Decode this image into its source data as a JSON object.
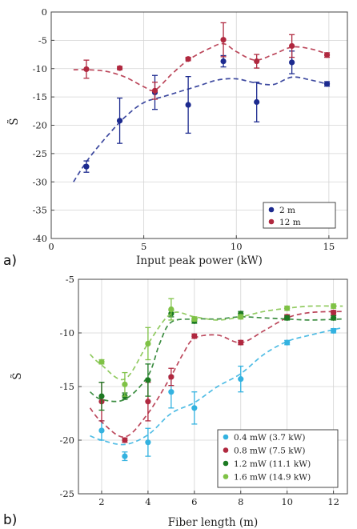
{
  "chart_data": [
    {
      "panel": "a)",
      "type": "scatter",
      "xlabel": "Input peak power (kW)",
      "ylabel": "S̃",
      "xlim": [
        0,
        16
      ],
      "ylim": [
        -40,
        0
      ],
      "xticks": [
        0,
        5,
        10,
        15
      ],
      "yticks": [
        0,
        -5,
        -10,
        -15,
        -20,
        -25,
        -30,
        -35,
        -40
      ],
      "grid": true,
      "legend": "bottom-right",
      "series": [
        {
          "name": "2 m",
          "color": "#1c2a8f",
          "x": [
            1.9,
            3.7,
            5.6,
            7.4,
            9.3,
            11.1,
            13.0,
            14.9
          ],
          "y": [
            -27.3,
            -19.2,
            -14.2,
            -16.4,
            -8.7,
            -15.9,
            -8.9,
            -12.7
          ],
          "err": [
            1.0,
            4.0,
            3.0,
            5.0,
            1.0,
            3.5,
            2.0,
            0.4
          ],
          "fit": [
            [
              1.2,
              -30
            ],
            [
              2,
              -26
            ],
            [
              3,
              -22
            ],
            [
              4,
              -18.5
            ],
            [
              5,
              -16
            ],
            [
              6,
              -15
            ],
            [
              7,
              -14
            ],
            [
              8,
              -13
            ],
            [
              9,
              -12
            ],
            [
              10,
              -11.8
            ],
            [
              11,
              -12.5
            ],
            [
              12,
              -12.8
            ],
            [
              13,
              -11.5
            ],
            [
              14,
              -12
            ],
            [
              15,
              -12.8
            ]
          ]
        },
        {
          "name": "12 m",
          "color": "#b0283f",
          "x": [
            1.9,
            3.7,
            5.6,
            7.4,
            9.3,
            11.1,
            13.0,
            14.9
          ],
          "y": [
            -10.1,
            -9.9,
            -13.9,
            -8.3,
            -4.9,
            -8.7,
            -6.0,
            -7.6
          ],
          "err": [
            1.6,
            0.3,
            1.5,
            0.3,
            3.0,
            1.2,
            2.0,
            0.4
          ],
          "fit": [
            [
              1.2,
              -10.2
            ],
            [
              2,
              -10.2
            ],
            [
              3,
              -10.5
            ],
            [
              4,
              -11.5
            ],
            [
              5,
              -13.2
            ],
            [
              5.6,
              -13.8
            ],
            [
              6.5,
              -11
            ],
            [
              7.4,
              -8.5
            ],
            [
              8.5,
              -6.5
            ],
            [
              9.3,
              -5.6
            ],
            [
              10,
              -7
            ],
            [
              11,
              -8.5
            ],
            [
              12,
              -7.5
            ],
            [
              13,
              -6.2
            ],
            [
              14,
              -6.5
            ],
            [
              15,
              -7.5
            ]
          ]
        }
      ]
    },
    {
      "panel": "b)",
      "type": "scatter",
      "xlabel": "Fiber length (m)",
      "ylabel": "S̃",
      "xlim": [
        1,
        12.6
      ],
      "ylim": [
        -25,
        -5
      ],
      "xticks": [
        2,
        4,
        6,
        8,
        10,
        12
      ],
      "yticks": [
        -5,
        -10,
        -15,
        -20,
        -25
      ],
      "grid": true,
      "legend": "bottom-right",
      "series": [
        {
          "name": "0.4 mW (3.7 kW)",
          "color": "#33b2e0",
          "x": [
            2,
            3,
            4,
            5,
            6,
            8,
            10,
            12
          ],
          "y": [
            -19.1,
            -21.5,
            -20.2,
            -15.5,
            -17.0,
            -14.3,
            -10.9,
            -9.8
          ],
          "err": [
            0.9,
            0.4,
            1.3,
            1.5,
            1.5,
            1.2,
            0.2,
            0.2
          ],
          "fit": [
            [
              1.5,
              -19.6
            ],
            [
              2,
              -20
            ],
            [
              3,
              -20.4
            ],
            [
              4,
              -19.5
            ],
            [
              5,
              -17.5
            ],
            [
              6,
              -16.5
            ],
            [
              7,
              -15
            ],
            [
              8,
              -13.8
            ],
            [
              9,
              -12
            ],
            [
              10,
              -10.8
            ],
            [
              11,
              -10.2
            ],
            [
              12.4,
              -9.5
            ]
          ]
        },
        {
          "name": "0.8 mW (7.5 kW)",
          "color": "#b0283f",
          "x": [
            2,
            3,
            4,
            5,
            6,
            8,
            10,
            12
          ],
          "y": [
            -16.4,
            -20.0,
            -16.4,
            -14.1,
            -10.3,
            -10.9,
            -8.5,
            -8.1
          ],
          "err": [
            1.8,
            0.2,
            1.8,
            0.8,
            0.2,
            0.2,
            0.2,
            0.2
          ],
          "fit": [
            [
              1.5,
              -17
            ],
            [
              2,
              -18.3
            ],
            [
              3,
              -19.7
            ],
            [
              4,
              -17.5
            ],
            [
              5,
              -14
            ],
            [
              5.5,
              -12
            ],
            [
              6,
              -10.5
            ],
            [
              7,
              -10.2
            ],
            [
              8,
              -10.9
            ],
            [
              9,
              -9.8
            ],
            [
              10,
              -8.6
            ],
            [
              11,
              -8.1
            ],
            [
              12.4,
              -8
            ]
          ]
        },
        {
          "name": "1.2 mW (11.1 kW)",
          "color": "#1c7a22",
          "x": [
            2,
            3,
            4,
            5,
            6,
            8,
            10,
            12
          ],
          "y": [
            -15.9,
            -15.9,
            -14.4,
            -8.2,
            -8.9,
            -8.2,
            -8.6,
            -8.6
          ],
          "err": [
            1.3,
            0.3,
            1.5,
            0.3,
            0.2,
            0.2,
            0.2,
            0.2
          ],
          "fit": [
            [
              1.5,
              -15.5
            ],
            [
              2,
              -16.2
            ],
            [
              3,
              -16.2
            ],
            [
              4,
              -14
            ],
            [
              4.5,
              -11
            ],
            [
              5,
              -9
            ],
            [
              6,
              -8.7
            ],
            [
              7,
              -8.7
            ],
            [
              8,
              -8.5
            ],
            [
              9,
              -8.6
            ],
            [
              10,
              -8.7
            ],
            [
              11,
              -8.8
            ],
            [
              12.4,
              -8.7
            ]
          ]
        },
        {
          "name": "1.6 mW (14.9 kW)",
          "color": "#7fc246",
          "x": [
            2,
            3,
            4,
            5,
            6,
            8,
            10,
            12
          ],
          "y": [
            -12.7,
            -14.8,
            -11.0,
            -7.8,
            -8.7,
            -8.5,
            -7.7,
            -7.5
          ],
          "err": [
            0.2,
            1.1,
            1.5,
            1.0,
            0.2,
            0.2,
            0.2,
            0.2
          ],
          "fit": [
            [
              1.5,
              -12
            ],
            [
              2,
              -13
            ],
            [
              3,
              -14.3
            ],
            [
              4,
              -11
            ],
            [
              5,
              -8.2
            ],
            [
              6,
              -8.5
            ],
            [
              7,
              -8.8
            ],
            [
              8,
              -8.5
            ],
            [
              9,
              -8.0
            ],
            [
              10,
              -7.7
            ],
            [
              11,
              -7.5
            ],
            [
              12.4,
              -7.5
            ]
          ]
        }
      ]
    }
  ]
}
